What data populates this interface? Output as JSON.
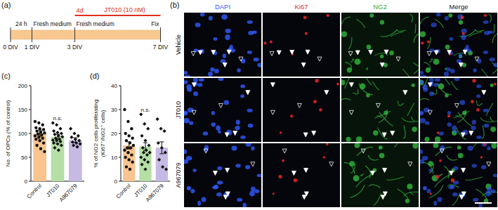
{
  "timeline": {
    "label": "(a)",
    "color": "#f9c890",
    "treatment": {
      "duration": "4d",
      "text": "JT010 (10 nM)",
      "from_day": 3,
      "to_day": 7,
      "color": "#e0301e"
    },
    "days": [
      {
        "day": 0,
        "label": "0 DIV"
      },
      {
        "day": 1,
        "label": "1 DIV"
      },
      {
        "day": 3,
        "label": "3 DIV"
      },
      {
        "day": 7,
        "label": "7 DIV"
      }
    ],
    "annotations": [
      {
        "day": 0.5,
        "text": "24 h"
      },
      {
        "day": 1,
        "text": "Fresh medium"
      },
      {
        "day": 3,
        "text": "Fresh medium"
      },
      {
        "day": 7,
        "text": "Fix"
      }
    ]
  },
  "micrographs": {
    "label": "(b)",
    "columns": [
      {
        "text": "DAPI",
        "color": "#2f5bff"
      },
      {
        "text": "Ki67",
        "color": "#e02424"
      },
      {
        "text": "NG2",
        "color": "#2fae3a"
      },
      {
        "text": "Merge",
        "color": "#111111"
      }
    ],
    "rows": [
      "Vehicle",
      "JT010",
      "A967079"
    ]
  },
  "chart_data": [
    {
      "type": "bar",
      "title": "(c)",
      "y_label": "No. of OPCs (% of control)",
      "categories": [
        "Control",
        "JT010",
        "A967079"
      ],
      "values": [
        100,
        93,
        86
      ],
      "errors": [
        6,
        5,
        5
      ],
      "colors": [
        "#f9c48e",
        "#b5dfa5",
        "#c6b9e3"
      ],
      "points": [
        {
          "marker": "circle",
          "values": [
            125,
            122,
            118,
            112,
            110,
            108,
            105,
            103,
            101,
            99,
            97,
            95,
            92,
            90,
            88,
            85,
            80,
            75,
            68,
            62
          ]
        },
        {
          "marker": "diamond",
          "values": [
            122,
            118,
            110,
            105,
            102,
            100,
            98,
            95,
            93,
            90,
            88,
            86,
            85,
            83,
            80,
            78,
            75,
            70,
            65
          ]
        },
        {
          "marker": "diamond",
          "values": [
            110,
            100,
            95,
            92,
            88,
            85,
            82,
            80,
            78,
            75,
            72
          ]
        }
      ],
      "ylim": [
        0,
        200
      ],
      "yticks": [
        0,
        50,
        100,
        150,
        200
      ],
      "annotations": [
        {
          "text": "n.s.",
          "category": "JT010"
        }
      ]
    },
    {
      "type": "bar",
      "title": "(d)",
      "y_label": [
        "% of NG2 cells proliferating",
        "(Ki67⁺/NG2⁺ cells)"
      ],
      "categories": [
        "Control",
        "JT010",
        "A967079"
      ],
      "values": [
        15,
        14.5,
        14
      ],
      "errors": [
        1.5,
        1.6,
        2.5
      ],
      "colors": [
        "#f9c48e",
        "#b5dfa5",
        "#c6b9e3"
      ],
      "points": [
        {
          "marker": "circle",
          "values": [
            30,
            25,
            22,
            20,
            19,
            18,
            17,
            16,
            15,
            14,
            14,
            13,
            12,
            11,
            10,
            9,
            8,
            6,
            5
          ]
        },
        {
          "marker": "diamond",
          "values": [
            28,
            24,
            22,
            19,
            17,
            15,
            14,
            13,
            12,
            12,
            11,
            10,
            9,
            8,
            7,
            5
          ]
        },
        {
          "marker": "diamond",
          "values": [
            26,
            22,
            21,
            16,
            14,
            12,
            9,
            6,
            5
          ]
        }
      ],
      "ylim": [
        0,
        40
      ],
      "yticks": [
        0,
        10,
        20,
        30,
        40
      ],
      "annotations": [
        {
          "text": "n.s.",
          "category": "JT010"
        }
      ]
    }
  ]
}
